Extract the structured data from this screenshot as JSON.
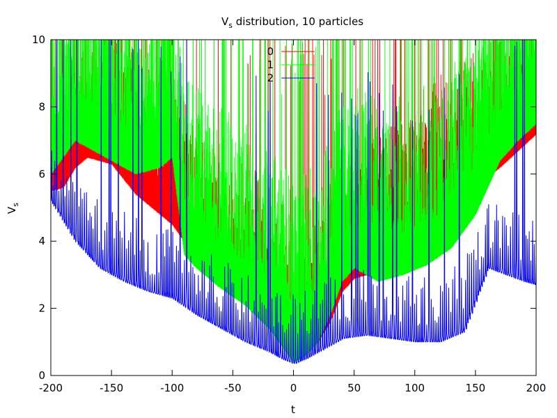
{
  "chart_data": {
    "type": "line",
    "title": "V",
    "title_subscript": "s",
    "title_rest": " distribution, 10 particles",
    "xlabel": "t",
    "ylabel": "V",
    "ylabel_subscript": "s",
    "xlim": [
      -200,
      200
    ],
    "ylim": [
      0,
      10
    ],
    "x_ticks": [
      -200,
      -150,
      -100,
      -50,
      0,
      50,
      100,
      150,
      200
    ],
    "y_ticks": [
      0,
      2,
      4,
      6,
      8,
      10
    ],
    "x_tick_labels": [
      "-200",
      "-150",
      "-100",
      "-50",
      "0",
      "50",
      "100",
      "150",
      "200"
    ],
    "y_tick_labels": [
      "0",
      "2",
      "4",
      "6",
      "8",
      "10"
    ],
    "grid": false,
    "legend_position": "top-center",
    "series": [
      {
        "name": "0",
        "color": "#ff0000",
        "envelope": {
          "t": [
            -200,
            -190,
            -180,
            -170,
            -150,
            -130,
            -110,
            -100,
            -80,
            -60,
            -40,
            -20,
            0,
            10,
            20,
            30,
            40,
            50,
            60,
            80,
            100,
            150,
            170,
            185,
            200
          ],
          "v": [
            5.5,
            5.6,
            6.2,
            6.5,
            6.3,
            5.4,
            4.8,
            4.5,
            3.5,
            2.8,
            2.2,
            1.6,
            0.4,
            0.7,
            1.0,
            1.6,
            2.5,
            2.9,
            3.0,
            3.5,
            4.2,
            5.6,
            6.2,
            6.7,
            7.2
          ]
        }
      },
      {
        "name": "1",
        "color": "#00ff00",
        "envelope": {
          "t": [
            -200,
            -190,
            -180,
            -170,
            -150,
            -130,
            -110,
            -100,
            -90,
            -80,
            -60,
            -40,
            -20,
            0,
            10,
            20,
            30,
            40,
            50,
            60,
            70,
            90,
            110,
            130,
            150,
            170,
            185,
            200
          ],
          "v": [
            6.0,
            6.5,
            7.0,
            6.8,
            6.4,
            6.0,
            6.2,
            6.5,
            3.6,
            3.2,
            2.6,
            2.1,
            1.4,
            0.4,
            0.6,
            1.0,
            1.8,
            2.8,
            3.2,
            3.0,
            2.8,
            3.0,
            3.3,
            3.8,
            4.8,
            6.4,
            7.0,
            7.5
          ]
        }
      },
      {
        "name": "2",
        "color": "#0000ff",
        "envelope": {
          "t": [
            -200,
            -190,
            -180,
            -160,
            -140,
            -120,
            -100,
            -80,
            -60,
            -40,
            -20,
            -10,
            0,
            10,
            20,
            30,
            40,
            60,
            80,
            100,
            120,
            140,
            160,
            175,
            190,
            200
          ],
          "v": [
            5.2,
            4.6,
            4.0,
            3.2,
            2.8,
            2.5,
            2.3,
            1.8,
            1.4,
            1.0,
            0.7,
            0.5,
            0.35,
            0.5,
            0.7,
            0.9,
            1.1,
            1.2,
            1.1,
            1.0,
            1.0,
            1.3,
            3.2,
            3.0,
            2.8,
            2.7
          ]
        }
      }
    ]
  }
}
